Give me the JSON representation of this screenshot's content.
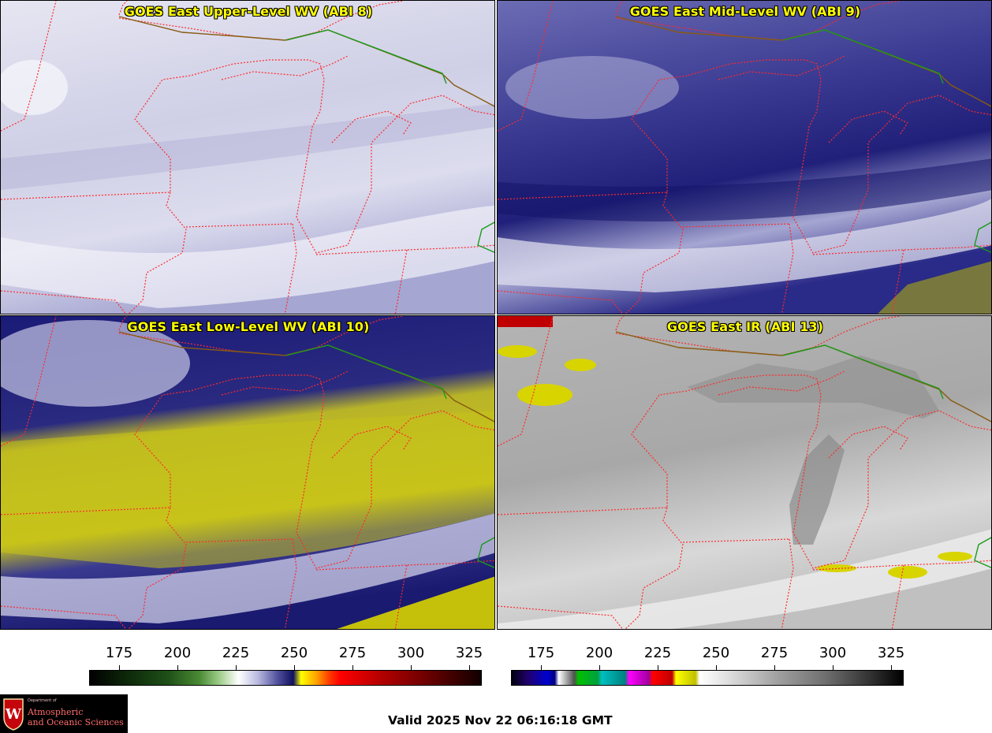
{
  "panels": {
    "upper": {
      "title": "GOES East Upper-Level WV (ABI 8)"
    },
    "mid": {
      "title": "GOES East Mid-Level WV (ABI 9)"
    },
    "low": {
      "title": "GOES East Low-Level WV (ABI 10)"
    },
    "ir": {
      "title": "GOES East IR (ABI 13)"
    }
  },
  "colorbars": {
    "wv": {
      "ticks": [
        "175",
        "200",
        "225",
        "250",
        "275",
        "300",
        "325"
      ]
    },
    "ir": {
      "ticks": [
        "175",
        "200",
        "225",
        "250",
        "275",
        "300",
        "325"
      ]
    }
  },
  "footer": {
    "logo": {
      "dept": "Department of",
      "line1": "Atmospheric",
      "line2": "and Oceanic Sciences",
      "crest_letter": "W"
    },
    "valid_time": "Valid 2025 Nov 22 06:16:18 GMT"
  },
  "colors": {
    "state_borders": "#ff2a2a",
    "country_border": "#1a9a1a",
    "title_text": "#ffff00",
    "logo_text": "#ff6b6b"
  }
}
